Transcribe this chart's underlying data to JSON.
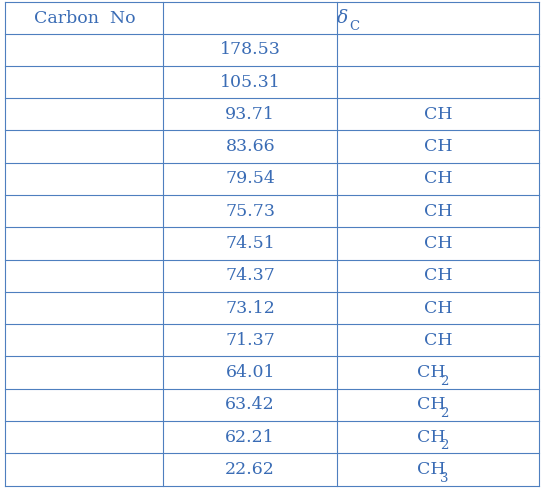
{
  "rows": [
    {
      "value": "178.53",
      "mult": ""
    },
    {
      "value": "105.31",
      "mult": ""
    },
    {
      "value": "93.71",
      "mult": "CH"
    },
    {
      "value": "83.66",
      "mult": "CH"
    },
    {
      "value": "79.54",
      "mult": "CH"
    },
    {
      "value": "75.73",
      "mult": "CH"
    },
    {
      "value": "74.51",
      "mult": "CH"
    },
    {
      "value": "74.37",
      "mult": "CH"
    },
    {
      "value": "73.12",
      "mult": "CH"
    },
    {
      "value": "71.37",
      "mult": "CH"
    },
    {
      "value": "64.01",
      "mult": "CH2"
    },
    {
      "value": "63.42",
      "mult": "CH2"
    },
    {
      "value": "62.21",
      "mult": "CH2"
    },
    {
      "value": "22.62",
      "mult": "CH3"
    }
  ],
  "text_color": "#3a6cb5",
  "border_color": "#4e7fbf",
  "bg_color": "#ffffff",
  "header_fontsize": 12.5,
  "cell_fontsize": 12.5,
  "fig_width": 5.44,
  "fig_height": 4.88,
  "dpi": 100
}
